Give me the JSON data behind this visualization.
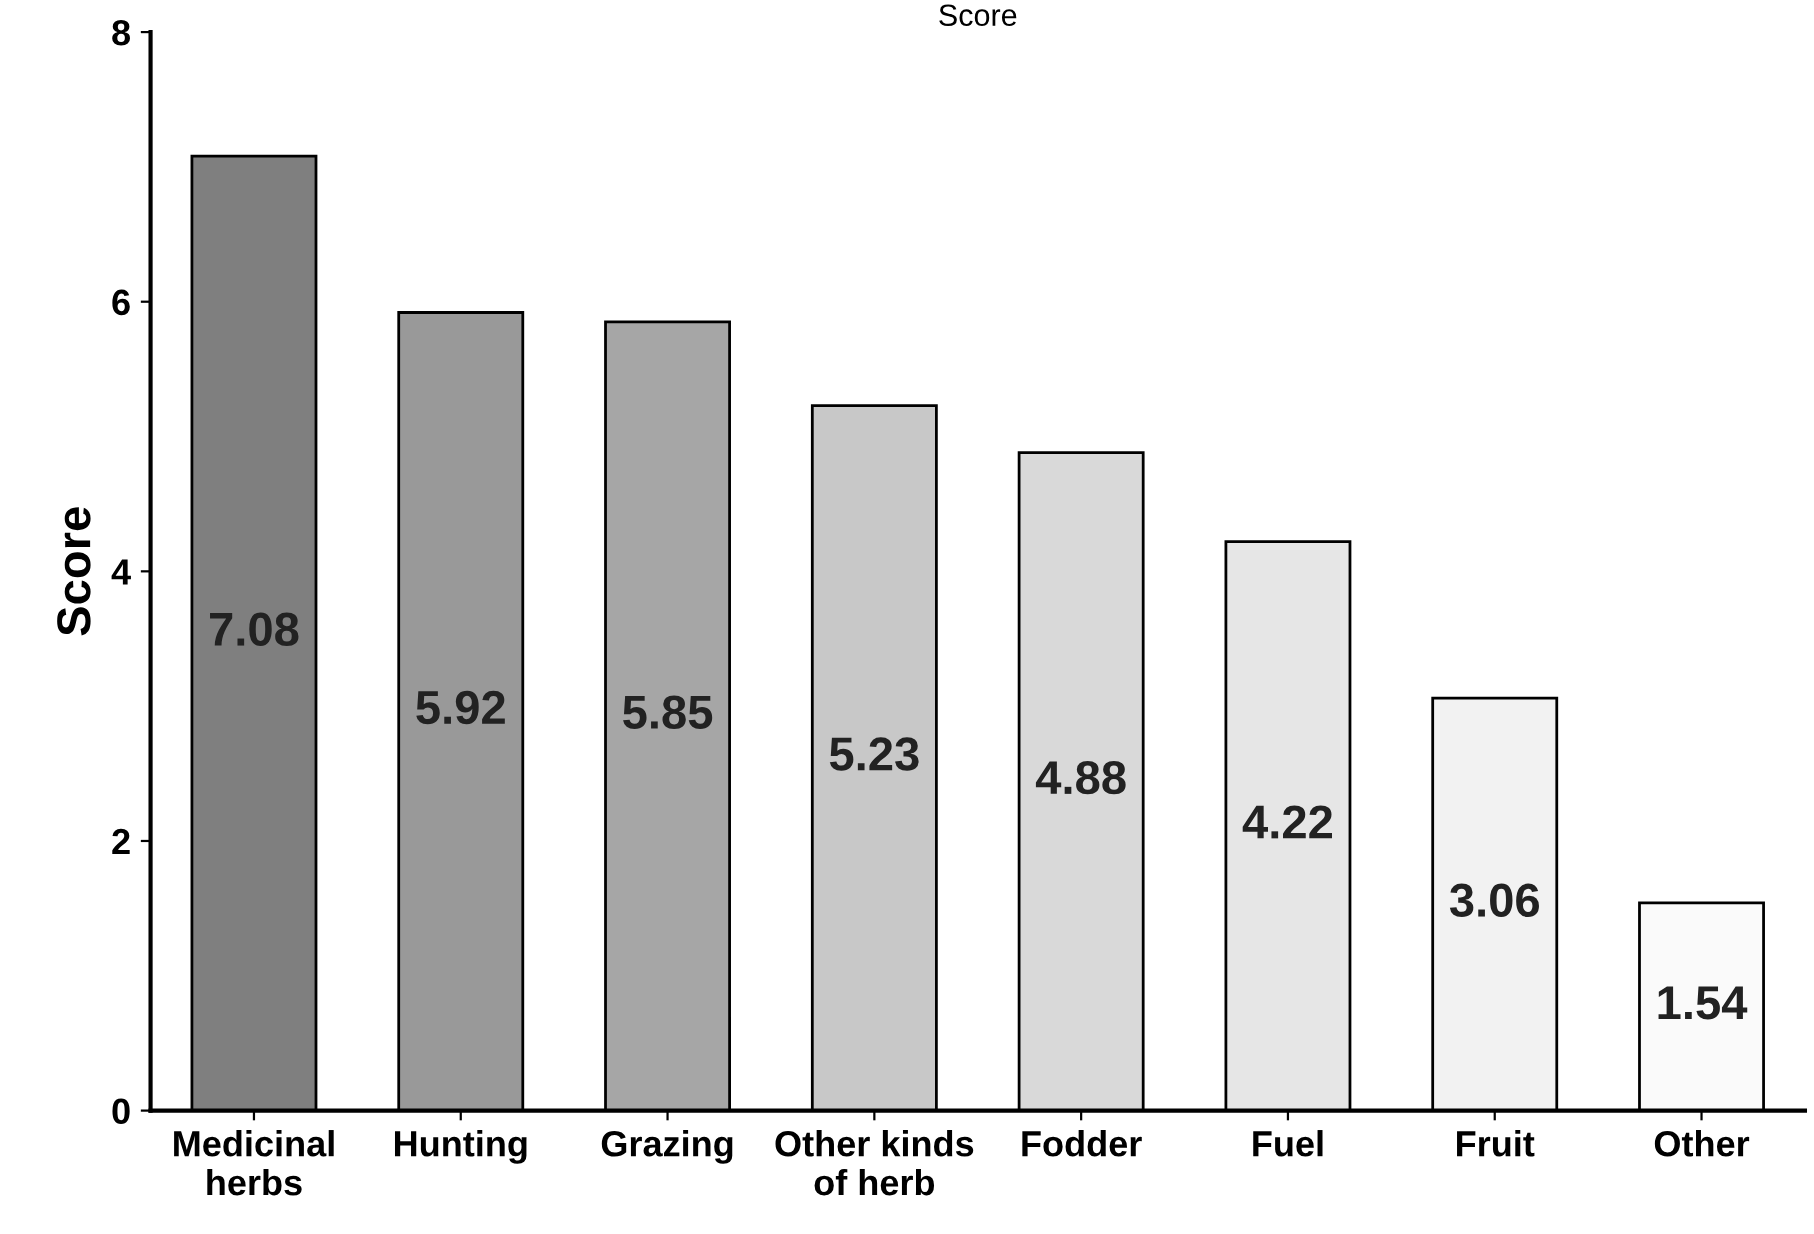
{
  "chart_data": {
    "type": "bar",
    "title": "Score",
    "ylabel": "Score",
    "categories": [
      "Medicinal\nherbs",
      "Hunting",
      "Grazing",
      "Other kinds\nof herb",
      "Fodder",
      "Fuel",
      "Fruit",
      "Other"
    ],
    "values": [
      7.08,
      5.92,
      5.85,
      5.23,
      4.88,
      4.22,
      3.06,
      1.54
    ],
    "colors": [
      "#7f7f7f",
      "#999999",
      "#a6a6a6",
      "#c8c8c8",
      "#d9d9d9",
      "#e6e6e6",
      "#f2f2f2",
      "#fafafa"
    ],
    "ylim": [
      0,
      8
    ],
    "yticks": [
      0,
      2,
      4,
      6,
      8
    ],
    "grid": false,
    "legend": false,
    "data_labels": true
  }
}
